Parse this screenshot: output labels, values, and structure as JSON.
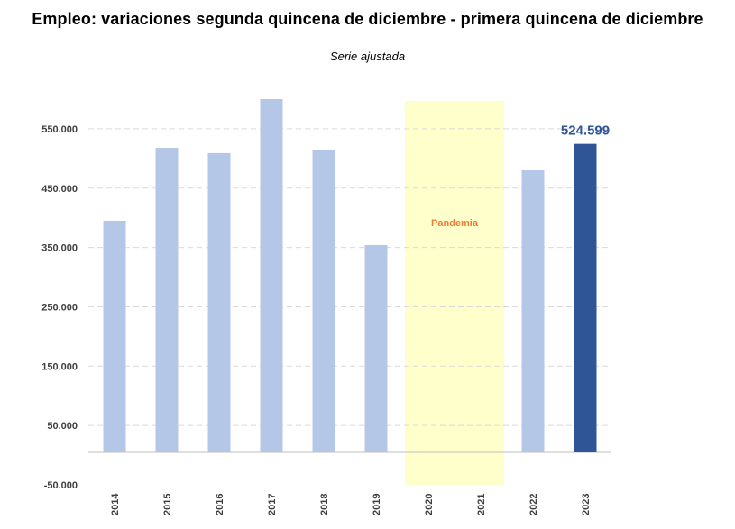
{
  "title": "Empleo: variaciones segunda quincena de diciembre - primera quincena de diciembre",
  "subtitle": "Serie ajustada",
  "colors": {
    "bar": "#b4c7e7",
    "highlight": "#2f5597",
    "band": "#ffffcc",
    "band_text": "#ed7d31",
    "grid": "#d9d9d9"
  },
  "chart_data": {
    "type": "bar",
    "title": "Empleo: variaciones segunda quincena de diciembre - primera quincena de diciembre",
    "subtitle": "Serie ajustada",
    "categories": [
      "2014",
      "2015",
      "2016",
      "2017",
      "2018",
      "2019",
      "2020",
      "2021",
      "2022",
      "2023"
    ],
    "values": [
      395000,
      518000,
      509000,
      600000,
      514000,
      354000,
      null,
      null,
      480000,
      524599
    ],
    "highlight_category": "2023",
    "data_labels": [
      {
        "category": "2023",
        "text": "524.599"
      }
    ],
    "shaded_region": {
      "from": "2020",
      "to": "2021",
      "label": "Pandemia"
    },
    "yticks": [
      {
        "value": -50000,
        "label": "-50.000"
      },
      {
        "value": 50000,
        "label": "50.000"
      },
      {
        "value": 150000,
        "label": "150.000"
      },
      {
        "value": 250000,
        "label": "250.000"
      },
      {
        "value": 350000,
        "label": "350.000"
      },
      {
        "value": 450000,
        "label": "450.000"
      },
      {
        "value": 550000,
        "label": "550.000"
      }
    ],
    "ylim": [
      -50000,
      600000
    ],
    "grid": true,
    "xlabel": "",
    "ylabel": ""
  }
}
